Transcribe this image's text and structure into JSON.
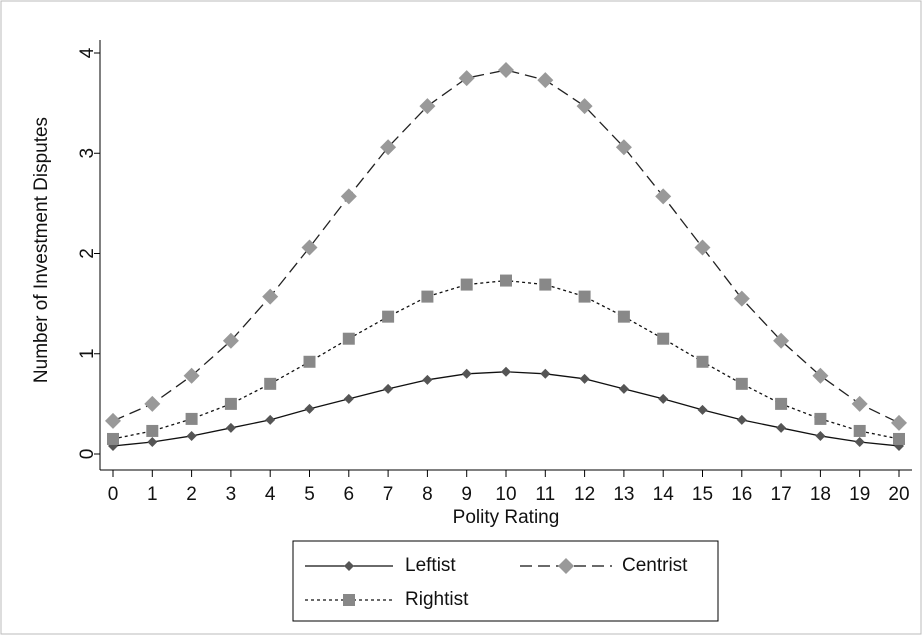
{
  "chart_data": {
    "type": "line",
    "x_label": "Polity Rating",
    "y_label": "Number of Investment Disputes",
    "x": [
      0,
      1,
      2,
      3,
      4,
      5,
      6,
      7,
      8,
      9,
      10,
      11,
      12,
      13,
      14,
      15,
      16,
      17,
      18,
      19,
      20
    ],
    "xlim": [
      0,
      20
    ],
    "xticks": [
      0,
      1,
      2,
      3,
      4,
      5,
      6,
      7,
      8,
      9,
      10,
      11,
      12,
      13,
      14,
      15,
      16,
      17,
      18,
      19,
      20
    ],
    "ylim": [
      0,
      4
    ],
    "yticks": [
      0,
      1,
      2,
      3,
      4
    ],
    "series": [
      {
        "name": "Leftist",
        "color": "#555555",
        "marker": "diamond",
        "dash": "solid",
        "values": [
          0.08,
          0.12,
          0.18,
          0.26,
          0.34,
          0.45,
          0.55,
          0.65,
          0.74,
          0.8,
          0.82,
          0.8,
          0.75,
          0.65,
          0.55,
          0.44,
          0.34,
          0.26,
          0.18,
          0.12,
          0.08
        ]
      },
      {
        "name": "Centrist",
        "color": "#999999",
        "marker": "diamond",
        "dash": "dashed",
        "values": [
          0.33,
          0.5,
          0.78,
          1.13,
          1.57,
          2.06,
          2.57,
          3.06,
          3.47,
          3.75,
          3.83,
          3.73,
          3.47,
          3.06,
          2.57,
          2.06,
          1.55,
          1.13,
          0.78,
          0.5,
          0.31
        ]
      },
      {
        "name": "Rightist",
        "color": "#888888",
        "marker": "square",
        "dash": "dotted",
        "values": [
          0.15,
          0.23,
          0.35,
          0.5,
          0.7,
          0.92,
          1.15,
          1.37,
          1.57,
          1.69,
          1.73,
          1.69,
          1.57,
          1.37,
          1.15,
          0.92,
          0.7,
          0.5,
          0.35,
          0.23,
          0.15
        ]
      }
    ]
  }
}
